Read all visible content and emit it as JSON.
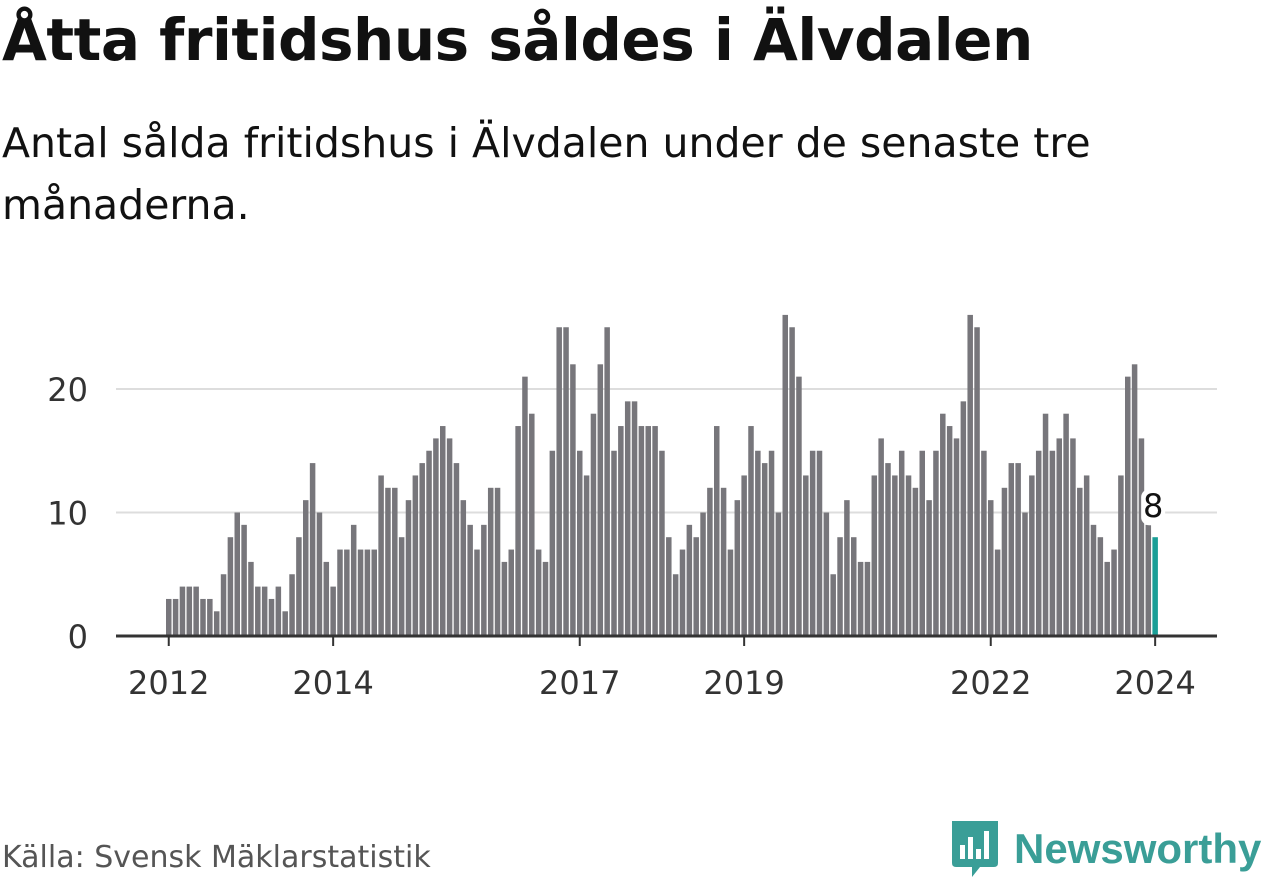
{
  "header": {
    "title": "Åtta fritidshus såldes i Älvdalen",
    "subtitle": "Antal sålda fritidshus i Älvdalen under de senaste tre månaderna."
  },
  "footer": {
    "source": "Källa: Svensk Mäklarstatistik",
    "brand": "Newsworthy"
  },
  "colors": {
    "bar": "#77767b",
    "highlight": "#1a9e96",
    "grid": "#dddddd",
    "axis": "#333333",
    "brand": "#3a9e97"
  },
  "chart_data": {
    "type": "bar",
    "title": "Åtta fritidshus såldes i Älvdalen",
    "xlabel": "",
    "ylabel": "",
    "ylim": [
      0,
      26
    ],
    "y_ticks": [
      0,
      10,
      20
    ],
    "x_ticks": [
      "2012",
      "2014",
      "2017",
      "2019",
      "2022",
      "2024"
    ],
    "grid": true,
    "values": [
      3,
      3,
      4,
      4,
      4,
      3,
      3,
      2,
      5,
      8,
      10,
      9,
      6,
      4,
      4,
      3,
      4,
      2,
      5,
      8,
      11,
      14,
      10,
      6,
      4,
      7,
      7,
      9,
      7,
      7,
      7,
      13,
      12,
      12,
      8,
      11,
      13,
      14,
      15,
      16,
      17,
      16,
      14,
      11,
      9,
      7,
      9,
      12,
      12,
      6,
      7,
      17,
      21,
      18,
      7,
      6,
      15,
      25,
      25,
      22,
      15,
      13,
      18,
      22,
      25,
      15,
      17,
      19,
      19,
      17,
      17,
      17,
      15,
      8,
      5,
      7,
      9,
      8,
      10,
      12,
      17,
      12,
      7,
      11,
      13,
      17,
      15,
      14,
      15,
      10,
      26,
      25,
      21,
      13,
      15,
      15,
      10,
      5,
      8,
      11,
      8,
      6,
      6,
      13,
      16,
      14,
      13,
      15,
      13,
      12,
      15,
      11,
      15,
      18,
      17,
      16,
      19,
      26,
      25,
      15,
      11,
      7,
      12,
      14,
      14,
      10,
      13,
      15,
      18,
      15,
      16,
      18,
      16,
      12,
      13,
      9,
      8,
      6,
      7,
      13,
      21,
      22,
      16,
      9,
      8
    ],
    "highlight_label": "8"
  }
}
